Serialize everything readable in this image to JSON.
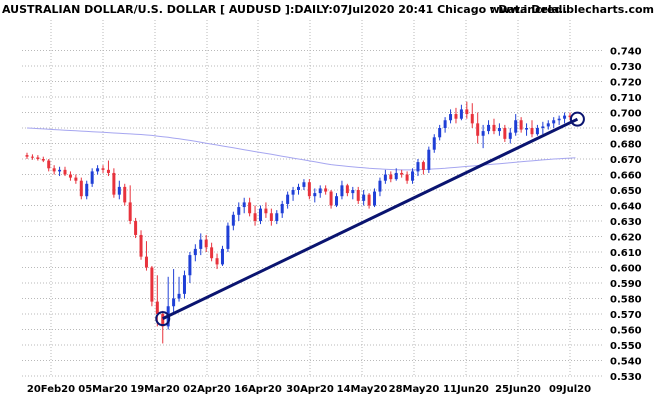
{
  "chart_data": {
    "type": "candlestick",
    "title": "AUSTRALIAN DOLLAR/U.S. DOLLAR [ AUDUSD ]:DAILY:07Jul2020 20:41 Chicago : Data Dela..",
    "site": "www.incrediblecharts.com",
    "ylim": [
      0.52,
      0.75
    ],
    "y_ticks": [
      "0.530",
      "0.540",
      "0.550",
      "0.560",
      "0.570",
      "0.580",
      "0.590",
      "0.600",
      "0.610",
      "0.620",
      "0.630",
      "0.640",
      "0.650",
      "0.660",
      "0.670",
      "0.680",
      "0.690",
      "0.700",
      "0.710",
      "0.720",
      "0.730",
      "0.740"
    ],
    "x_ticks": [
      "20Feb20",
      "05Mar20",
      "19Mar20",
      "02Apr20",
      "16Apr20",
      "30Apr20",
      "14May20",
      "28May20",
      "11Jun20",
      "25Jun20",
      "09Jul20"
    ],
    "grid": true,
    "colors": {
      "up": "#1f3fd6",
      "down": "#e8323c",
      "ma": "#a6a6f0",
      "trend": "#0a1470",
      "grid": "#b9b9b9"
    },
    "candles": [
      {
        "o": 0.6725,
        "h": 0.674,
        "l": 0.67,
        "c": 0.6715
      },
      {
        "o": 0.6715,
        "h": 0.673,
        "l": 0.6695,
        "c": 0.671
      },
      {
        "o": 0.671,
        "h": 0.6725,
        "l": 0.669,
        "c": 0.67
      },
      {
        "o": 0.67,
        "h": 0.6715,
        "l": 0.668,
        "c": 0.669
      },
      {
        "o": 0.669,
        "h": 0.67,
        "l": 0.662,
        "c": 0.664
      },
      {
        "o": 0.664,
        "h": 0.666,
        "l": 0.66,
        "c": 0.662
      },
      {
        "o": 0.662,
        "h": 0.665,
        "l": 0.659,
        "c": 0.663
      },
      {
        "o": 0.663,
        "h": 0.665,
        "l": 0.659,
        "c": 0.66
      },
      {
        "o": 0.66,
        "h": 0.662,
        "l": 0.656,
        "c": 0.658
      },
      {
        "o": 0.658,
        "h": 0.66,
        "l": 0.654,
        "c": 0.656
      },
      {
        "o": 0.656,
        "h": 0.658,
        "l": 0.644,
        "c": 0.646
      },
      {
        "o": 0.646,
        "h": 0.656,
        "l": 0.644,
        "c": 0.654
      },
      {
        "o": 0.654,
        "h": 0.664,
        "l": 0.652,
        "c": 0.662
      },
      {
        "o": 0.662,
        "h": 0.666,
        "l": 0.66,
        "c": 0.664
      },
      {
        "o": 0.664,
        "h": 0.666,
        "l": 0.661,
        "c": 0.663
      },
      {
        "o": 0.663,
        "h": 0.669,
        "l": 0.659,
        "c": 0.661
      },
      {
        "o": 0.661,
        "h": 0.664,
        "l": 0.645,
        "c": 0.647
      },
      {
        "o": 0.647,
        "h": 0.656,
        "l": 0.644,
        "c": 0.652
      },
      {
        "o": 0.652,
        "h": 0.654,
        "l": 0.64,
        "c": 0.642
      },
      {
        "o": 0.642,
        "h": 0.653,
        "l": 0.628,
        "c": 0.63
      },
      {
        "o": 0.63,
        "h": 0.632,
        "l": 0.619,
        "c": 0.621
      },
      {
        "o": 0.621,
        "h": 0.624,
        "l": 0.605,
        "c": 0.607
      },
      {
        "o": 0.607,
        "h": 0.617,
        "l": 0.598,
        "c": 0.6
      },
      {
        "o": 0.6,
        "h": 0.601,
        "l": 0.575,
        "c": 0.578
      },
      {
        "o": 0.578,
        "h": 0.595,
        "l": 0.562,
        "c": 0.57
      },
      {
        "o": 0.57,
        "h": 0.572,
        "l": 0.551,
        "c": 0.562
      },
      {
        "o": 0.562,
        "h": 0.594,
        "l": 0.56,
        "c": 0.575
      },
      {
        "o": 0.575,
        "h": 0.599,
        "l": 0.57,
        "c": 0.58
      },
      {
        "o": 0.58,
        "h": 0.594,
        "l": 0.578,
        "c": 0.583
      },
      {
        "o": 0.583,
        "h": 0.598,
        "l": 0.58,
        "c": 0.595
      },
      {
        "o": 0.595,
        "h": 0.61,
        "l": 0.59,
        "c": 0.608
      },
      {
        "o": 0.608,
        "h": 0.615,
        "l": 0.604,
        "c": 0.612
      },
      {
        "o": 0.612,
        "h": 0.622,
        "l": 0.608,
        "c": 0.618
      },
      {
        "o": 0.618,
        "h": 0.621,
        "l": 0.61,
        "c": 0.613
      },
      {
        "o": 0.613,
        "h": 0.616,
        "l": 0.604,
        "c": 0.606
      },
      {
        "o": 0.606,
        "h": 0.609,
        "l": 0.599,
        "c": 0.602
      },
      {
        "o": 0.602,
        "h": 0.614,
        "l": 0.601,
        "c": 0.612
      },
      {
        "o": 0.612,
        "h": 0.629,
        "l": 0.61,
        "c": 0.627
      },
      {
        "o": 0.627,
        "h": 0.636,
        "l": 0.624,
        "c": 0.634
      },
      {
        "o": 0.634,
        "h": 0.642,
        "l": 0.63,
        "c": 0.639
      },
      {
        "o": 0.639,
        "h": 0.645,
        "l": 0.635,
        "c": 0.642
      },
      {
        "o": 0.642,
        "h": 0.645,
        "l": 0.633,
        "c": 0.635
      },
      {
        "o": 0.635,
        "h": 0.64,
        "l": 0.627,
        "c": 0.63
      },
      {
        "o": 0.63,
        "h": 0.64,
        "l": 0.628,
        "c": 0.638
      },
      {
        "o": 0.638,
        "h": 0.642,
        "l": 0.632,
        "c": 0.635
      },
      {
        "o": 0.635,
        "h": 0.638,
        "l": 0.627,
        "c": 0.63
      },
      {
        "o": 0.63,
        "h": 0.637,
        "l": 0.628,
        "c": 0.635
      },
      {
        "o": 0.635,
        "h": 0.643,
        "l": 0.632,
        "c": 0.641
      },
      {
        "o": 0.641,
        "h": 0.649,
        "l": 0.638,
        "c": 0.647
      },
      {
        "o": 0.647,
        "h": 0.652,
        "l": 0.643,
        "c": 0.65
      },
      {
        "o": 0.65,
        "h": 0.654,
        "l": 0.647,
        "c": 0.652
      },
      {
        "o": 0.652,
        "h": 0.657,
        "l": 0.65,
        "c": 0.655
      },
      {
        "o": 0.655,
        "h": 0.657,
        "l": 0.644,
        "c": 0.646
      },
      {
        "o": 0.646,
        "h": 0.651,
        "l": 0.642,
        "c": 0.648
      },
      {
        "o": 0.648,
        "h": 0.653,
        "l": 0.645,
        "c": 0.651
      },
      {
        "o": 0.651,
        "h": 0.653,
        "l": 0.647,
        "c": 0.649
      },
      {
        "o": 0.649,
        "h": 0.65,
        "l": 0.638,
        "c": 0.64
      },
      {
        "o": 0.64,
        "h": 0.648,
        "l": 0.639,
        "c": 0.646
      },
      {
        "o": 0.646,
        "h": 0.656,
        "l": 0.644,
        "c": 0.653
      },
      {
        "o": 0.653,
        "h": 0.654,
        "l": 0.646,
        "c": 0.648
      },
      {
        "o": 0.648,
        "h": 0.652,
        "l": 0.644,
        "c": 0.65
      },
      {
        "o": 0.65,
        "h": 0.652,
        "l": 0.641,
        "c": 0.643
      },
      {
        "o": 0.643,
        "h": 0.65,
        "l": 0.64,
        "c": 0.647
      },
      {
        "o": 0.647,
        "h": 0.648,
        "l": 0.638,
        "c": 0.64
      },
      {
        "o": 0.64,
        "h": 0.651,
        "l": 0.639,
        "c": 0.649
      },
      {
        "o": 0.649,
        "h": 0.658,
        "l": 0.646,
        "c": 0.656
      },
      {
        "o": 0.656,
        "h": 0.663,
        "l": 0.654,
        "c": 0.66
      },
      {
        "o": 0.66,
        "h": 0.662,
        "l": 0.655,
        "c": 0.657
      },
      {
        "o": 0.657,
        "h": 0.664,
        "l": 0.656,
        "c": 0.661
      },
      {
        "o": 0.661,
        "h": 0.663,
        "l": 0.658,
        "c": 0.66
      },
      {
        "o": 0.66,
        "h": 0.662,
        "l": 0.654,
        "c": 0.656
      },
      {
        "o": 0.656,
        "h": 0.664,
        "l": 0.654,
        "c": 0.662
      },
      {
        "o": 0.662,
        "h": 0.67,
        "l": 0.659,
        "c": 0.668
      },
      {
        "o": 0.668,
        "h": 0.669,
        "l": 0.66,
        "c": 0.663
      },
      {
        "o": 0.663,
        "h": 0.678,
        "l": 0.661,
        "c": 0.676
      },
      {
        "o": 0.676,
        "h": 0.686,
        "l": 0.674,
        "c": 0.684
      },
      {
        "o": 0.684,
        "h": 0.692,
        "l": 0.682,
        "c": 0.69
      },
      {
        "o": 0.69,
        "h": 0.697,
        "l": 0.687,
        "c": 0.695
      },
      {
        "o": 0.695,
        "h": 0.702,
        "l": 0.693,
        "c": 0.699
      },
      {
        "o": 0.699,
        "h": 0.703,
        "l": 0.693,
        "c": 0.696
      },
      {
        "o": 0.696,
        "h": 0.705,
        "l": 0.695,
        "c": 0.702
      },
      {
        "o": 0.702,
        "h": 0.707,
        "l": 0.696,
        "c": 0.699
      },
      {
        "o": 0.699,
        "h": 0.706,
        "l": 0.69,
        "c": 0.693
      },
      {
        "o": 0.693,
        "h": 0.7,
        "l": 0.68,
        "c": 0.685
      },
      {
        "o": 0.685,
        "h": 0.692,
        "l": 0.677,
        "c": 0.688
      },
      {
        "o": 0.688,
        "h": 0.695,
        "l": 0.686,
        "c": 0.692
      },
      {
        "o": 0.692,
        "h": 0.696,
        "l": 0.686,
        "c": 0.688
      },
      {
        "o": 0.688,
        "h": 0.693,
        "l": 0.685,
        "c": 0.69
      },
      {
        "o": 0.69,
        "h": 0.692,
        "l": 0.681,
        "c": 0.683
      },
      {
        "o": 0.683,
        "h": 0.69,
        "l": 0.68,
        "c": 0.687
      },
      {
        "o": 0.687,
        "h": 0.699,
        "l": 0.685,
        "c": 0.695
      },
      {
        "o": 0.695,
        "h": 0.697,
        "l": 0.687,
        "c": 0.689
      },
      {
        "o": 0.689,
        "h": 0.693,
        "l": 0.685,
        "c": 0.69
      },
      {
        "o": 0.69,
        "h": 0.695,
        "l": 0.684,
        "c": 0.686
      },
      {
        "o": 0.686,
        "h": 0.692,
        "l": 0.685,
        "c": 0.69
      },
      {
        "o": 0.69,
        "h": 0.694,
        "l": 0.686,
        "c": 0.691
      },
      {
        "o": 0.691,
        "h": 0.695,
        "l": 0.689,
        "c": 0.693
      },
      {
        "o": 0.693,
        "h": 0.697,
        "l": 0.69,
        "c": 0.695
      },
      {
        "o": 0.695,
        "h": 0.698,
        "l": 0.692,
        "c": 0.696
      },
      {
        "o": 0.696,
        "h": 0.7,
        "l": 0.693,
        "c": 0.698
      },
      {
        "o": 0.698,
        "h": 0.7,
        "l": 0.695,
        "c": 0.697
      }
    ],
    "moving_average": [
      0.69,
      0.6898,
      0.6896,
      0.6894,
      0.6892,
      0.689,
      0.6888,
      0.6886,
      0.6884,
      0.6882,
      0.688,
      0.6878,
      0.6876,
      0.6874,
      0.6872,
      0.687,
      0.6868,
      0.6866,
      0.6864,
      0.6862,
      0.686,
      0.6858,
      0.6855,
      0.6852,
      0.6848,
      0.6844,
      0.684,
      0.6835,
      0.683,
      0.6825,
      0.682,
      0.6814,
      0.6808,
      0.6802,
      0.6796,
      0.679,
      0.6784,
      0.6778,
      0.6772,
      0.6766,
      0.676,
      0.6754,
      0.6748,
      0.6742,
      0.6736,
      0.673,
      0.6724,
      0.6718,
      0.6712,
      0.6706,
      0.67,
      0.6694,
      0.6688,
      0.6682,
      0.6676,
      0.667,
      0.6664,
      0.666,
      0.6656,
      0.6652,
      0.6649,
      0.6646,
      0.6643,
      0.664,
      0.6638,
      0.6636,
      0.6634,
      0.6632,
      0.6631,
      0.663,
      0.663,
      0.663,
      0.6631,
      0.6632,
      0.6634,
      0.6636,
      0.6638,
      0.664,
      0.6643,
      0.6646,
      0.6649,
      0.6652,
      0.6655,
      0.6658,
      0.6661,
      0.6664,
      0.6667,
      0.667,
      0.6673,
      0.6676,
      0.6679,
      0.6682,
      0.6685,
      0.6688,
      0.6691,
      0.6694,
      0.6697,
      0.67,
      0.6702,
      0.6704,
      0.6706,
      0.6708
    ],
    "trendline": {
      "start_index": 25,
      "start_value": 0.567,
      "end_index": 101,
      "end_value": 0.6957
    }
  }
}
